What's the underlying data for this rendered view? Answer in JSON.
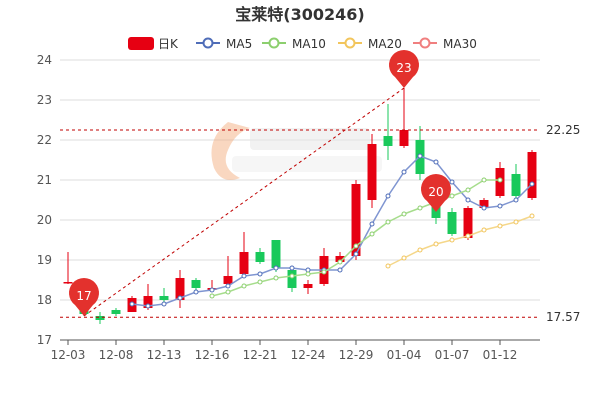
{
  "chart_data": {
    "type": "candlestick",
    "title": "宝莱特(300246)",
    "legend": {
      "position": "top",
      "items": [
        {
          "name": "日K",
          "color": "#e60012",
          "style": "box"
        },
        {
          "name": "MA5",
          "color": "#4f6db8",
          "style": "circle"
        },
        {
          "name": "MA10",
          "color": "#8ccf6e",
          "style": "circle"
        },
        {
          "name": "MA20",
          "color": "#f2c55c",
          "style": "circle"
        },
        {
          "name": "MA30",
          "color": "#f07f7f",
          "style": "circle"
        }
      ]
    },
    "y_axis": {
      "min": 17,
      "max": 24,
      "ticks": [
        "17",
        "18",
        "19",
        "20",
        "21",
        "22",
        "23",
        "24"
      ]
    },
    "x_ticks": [
      {
        "i": 0,
        "label": "12-03"
      },
      {
        "i": 3,
        "label": "12-08"
      },
      {
        "i": 6,
        "label": "12-13"
      },
      {
        "i": 9,
        "label": "12-16"
      },
      {
        "i": 12,
        "label": "12-21"
      },
      {
        "i": 15,
        "label": "12-24"
      },
      {
        "i": 18,
        "label": "12-29"
      },
      {
        "i": 21,
        "label": "01-04"
      },
      {
        "i": 24,
        "label": "01-07"
      },
      {
        "i": 27,
        "label": "01-12"
      }
    ],
    "up_color": "#e60012",
    "down_color": "#19c95b",
    "candles": [
      {
        "o": 18.45,
        "c": 18.45,
        "h": 19.2,
        "l": 18.4
      },
      {
        "o": 18.4,
        "c": 17.65,
        "h": 18.45,
        "l": 17.6
      },
      {
        "o": 17.6,
        "c": 17.5,
        "h": 17.7,
        "l": 17.4
      },
      {
        "o": 17.75,
        "c": 17.65,
        "h": 17.8,
        "l": 17.6
      },
      {
        "o": 17.7,
        "c": 18.05,
        "h": 18.1,
        "l": 17.7
      },
      {
        "o": 17.8,
        "c": 18.1,
        "h": 18.4,
        "l": 17.75
      },
      {
        "o": 18.1,
        "c": 18.0,
        "h": 18.3,
        "l": 17.9
      },
      {
        "o": 18.0,
        "c": 18.55,
        "h": 18.75,
        "l": 17.8
      },
      {
        "o": 18.5,
        "c": 18.3,
        "h": 18.55,
        "l": 18.2
      },
      {
        "o": 18.25,
        "c": 18.3,
        "h": 18.5,
        "l": 18.2
      },
      {
        "o": 18.4,
        "c": 18.6,
        "h": 19.1,
        "l": 18.3
      },
      {
        "o": 18.65,
        "c": 19.2,
        "h": 19.7,
        "l": 18.6
      },
      {
        "o": 19.2,
        "c": 18.95,
        "h": 19.3,
        "l": 18.9
      },
      {
        "o": 19.5,
        "c": 18.8,
        "h": 19.5,
        "l": 18.7
      },
      {
        "o": 18.75,
        "c": 18.3,
        "h": 18.8,
        "l": 18.2
      },
      {
        "o": 18.3,
        "c": 18.4,
        "h": 18.5,
        "l": 18.15
      },
      {
        "o": 18.4,
        "c": 19.1,
        "h": 19.3,
        "l": 18.35
      },
      {
        "o": 18.95,
        "c": 19.1,
        "h": 19.2,
        "l": 18.9
      },
      {
        "o": 19.1,
        "c": 20.9,
        "h": 21.0,
        "l": 19.0
      },
      {
        "o": 20.5,
        "c": 21.9,
        "h": 22.15,
        "l": 20.3
      },
      {
        "o": 22.1,
        "c": 21.85,
        "h": 22.9,
        "l": 21.5
      },
      {
        "o": 21.85,
        "c": 22.25,
        "h": 23.3,
        "l": 21.8
      },
      {
        "o": 22.0,
        "c": 21.15,
        "h": 22.35,
        "l": 21.0
      },
      {
        "o": 20.5,
        "c": 20.05,
        "h": 20.6,
        "l": 19.9
      },
      {
        "o": 20.2,
        "c": 19.65,
        "h": 20.3,
        "l": 19.6
      },
      {
        "o": 19.55,
        "c": 20.3,
        "h": 20.35,
        "l": 19.5
      },
      {
        "o": 20.3,
        "c": 20.5,
        "h": 20.55,
        "l": 20.25
      },
      {
        "o": 20.6,
        "c": 21.3,
        "h": 21.45,
        "l": 20.55
      },
      {
        "o": 21.15,
        "c": 20.6,
        "h": 21.4,
        "l": 20.55
      },
      {
        "o": 20.55,
        "c": 21.7,
        "h": 21.75,
        "l": 20.5
      }
    ],
    "ma5": [
      null,
      null,
      null,
      null,
      17.9,
      17.85,
      17.9,
      18.05,
      18.2,
      18.25,
      18.35,
      18.6,
      18.65,
      18.8,
      18.8,
      18.75,
      18.75,
      18.75,
      19.15,
      19.9,
      20.6,
      21.2,
      21.6,
      21.45,
      20.95,
      20.5,
      20.3,
      20.35,
      20.5,
      20.9
    ],
    "ma10": [
      null,
      null,
      null,
      null,
      null,
      null,
      null,
      null,
      null,
      18.1,
      18.2,
      18.35,
      18.45,
      18.55,
      18.6,
      18.65,
      18.7,
      18.95,
      19.35,
      19.65,
      19.95,
      20.15,
      20.3,
      20.45,
      20.6,
      20.75,
      21.0,
      21.0,
      null,
      null
    ],
    "ma20": [
      null,
      null,
      null,
      null,
      null,
      null,
      null,
      null,
      null,
      null,
      null,
      null,
      null,
      null,
      null,
      null,
      null,
      null,
      null,
      null,
      18.85,
      19.05,
      19.25,
      19.4,
      19.5,
      19.6,
      19.75,
      19.85,
      19.95,
      20.1
    ],
    "reference_lines": [
      {
        "value": 22.25,
        "label": "22.25"
      },
      {
        "value": 17.57,
        "label": "17.57"
      }
    ],
    "markers": [
      {
        "i": 1,
        "value": 17.6,
        "label": "17"
      },
      {
        "i": 21,
        "value": 23.3,
        "label": "23"
      },
      {
        "i": 23,
        "value": 20.2,
        "label": "20"
      }
    ]
  }
}
